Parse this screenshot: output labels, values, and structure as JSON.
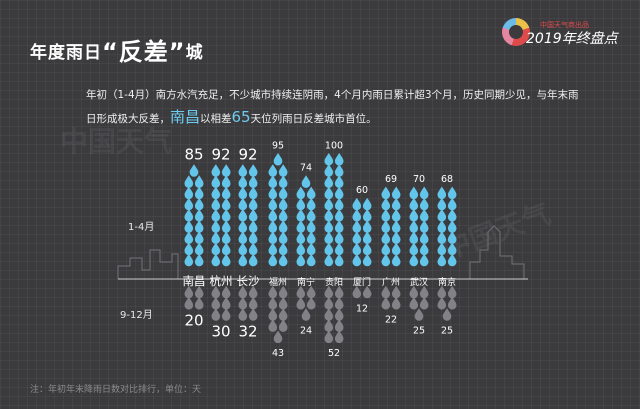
{
  "header": {
    "title_pre": "年度雨日",
    "title_quote_open": "“",
    "title_big": "反差",
    "title_quote_close": "”",
    "title_post": "城"
  },
  "brand": {
    "subtitle": "中国天气商出品",
    "title": "2019年终盘点"
  },
  "description": {
    "line1": "年初（1-4月）南方水汽充足，不少城市持续连阴雨，4个月内雨日累计超3个月，历史同期少见，与年末雨日形成极大反差，",
    "highlight_city": "南昌",
    "text_mid": "以相差",
    "highlight_num": "65",
    "text_end": "天位列雨日反差城市首位。"
  },
  "watermark": "中国天气",
  "chart_data": {
    "type": "pictogram",
    "categories": [
      "南昌",
      "杭州",
      "长沙",
      "福州",
      "南宁",
      "贵阳",
      "厦门",
      "广州",
      "武汉",
      "南京"
    ],
    "series": [
      {
        "name": "1-4月",
        "values": [
          85,
          92,
          92,
          95,
          74,
          100,
          60,
          69,
          70,
          68
        ]
      },
      {
        "name": "9-12月",
        "values": [
          20,
          30,
          32,
          43,
          24,
          52,
          12,
          22,
          25,
          25
        ]
      }
    ],
    "row_labels": {
      "top": "1-4月",
      "bottom": "9-12月"
    },
    "colors": {
      "top": "#63c5ea",
      "bottom": "#8a8a8e",
      "label": "#ffffff",
      "skyline": "#6a6a6e"
    }
  },
  "footnote": "注：年初年末降雨日数对比排行，单位：天"
}
